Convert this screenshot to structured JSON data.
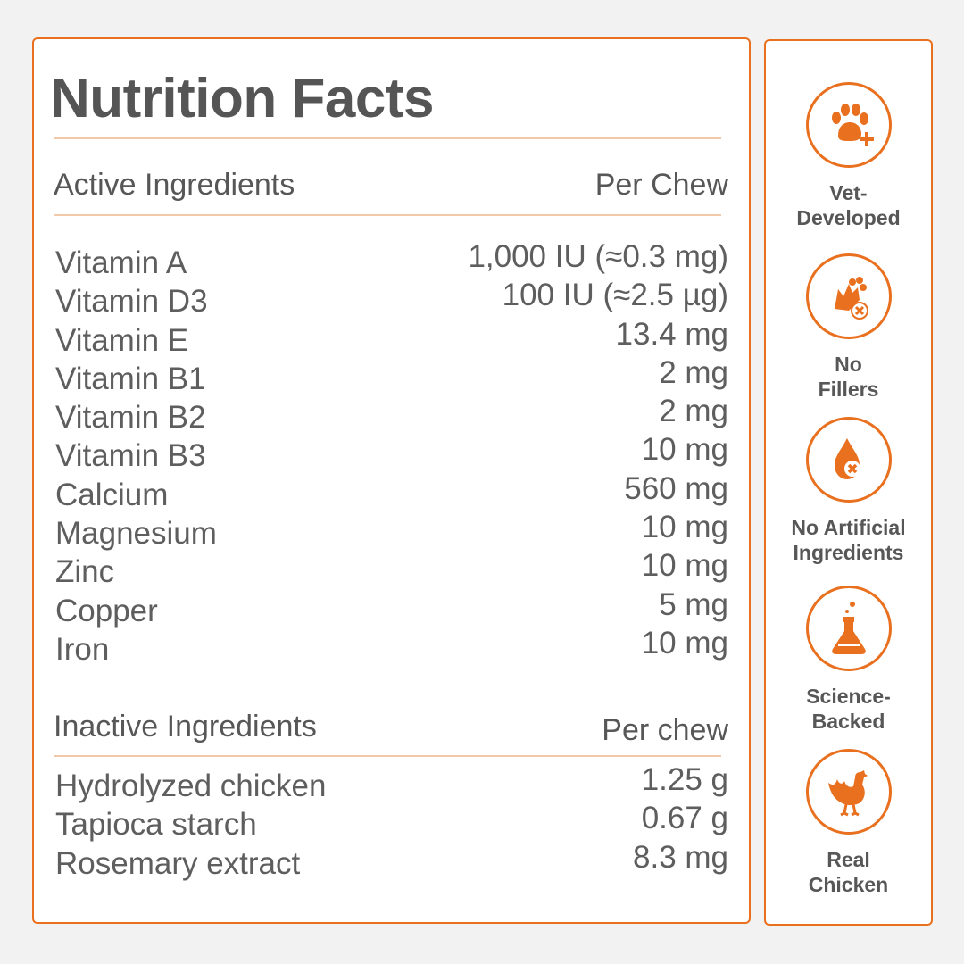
{
  "nutrition": {
    "title": "Nutrition Facts",
    "active_header": {
      "label": "Active Ingredients",
      "unit": "Per Chew"
    },
    "active": [
      {
        "name": "Vitamin A",
        "amount": "1,000 IU (≈0.3 mg)"
      },
      {
        "name": "Vitamin D3",
        "amount": "100 IU (≈2.5 µg)"
      },
      {
        "name": "Vitamin E",
        "amount": "13.4 mg"
      },
      {
        "name": "Vitamin B1",
        "amount": "2 mg"
      },
      {
        "name": "Vitamin B2",
        "amount": "2 mg"
      },
      {
        "name": "Vitamin B3",
        "amount": "10 mg"
      },
      {
        "name": "Calcium",
        "amount": "560 mg"
      },
      {
        "name": "Magnesium",
        "amount": "10 mg"
      },
      {
        "name": "Zinc",
        "amount": "10 mg"
      },
      {
        "name": "Copper",
        "amount": "5 mg"
      },
      {
        "name": "Iron",
        "amount": "10 mg"
      }
    ],
    "inactive_header": {
      "label": "Inactive Ingredients",
      "unit": "Per chew"
    },
    "inactive": [
      {
        "name": "Hydrolyzed chicken",
        "amount": "1.25 g"
      },
      {
        "name": "Tapioca starch",
        "amount": "0.67 g"
      },
      {
        "name": "Rosemary extract",
        "amount": "8.3 mg"
      }
    ]
  },
  "badges": [
    {
      "icon": "paw-plus-icon",
      "line1": "Vet-",
      "line2": "Developed"
    },
    {
      "icon": "no-fillers-icon",
      "line1": "No",
      "line2": "Fillers"
    },
    {
      "icon": "drop-x-icon",
      "line1": "No Artificial",
      "line2": "Ingredients"
    },
    {
      "icon": "flask-icon",
      "line1": "Science-",
      "line2": "Backed"
    },
    {
      "icon": "chicken-icon",
      "line1": "Real",
      "line2": "Chicken"
    }
  ],
  "colors": {
    "accent": "#e8701f",
    "text": "#575757",
    "rule": "#f2c9a8",
    "background": "#f2f2f2"
  }
}
